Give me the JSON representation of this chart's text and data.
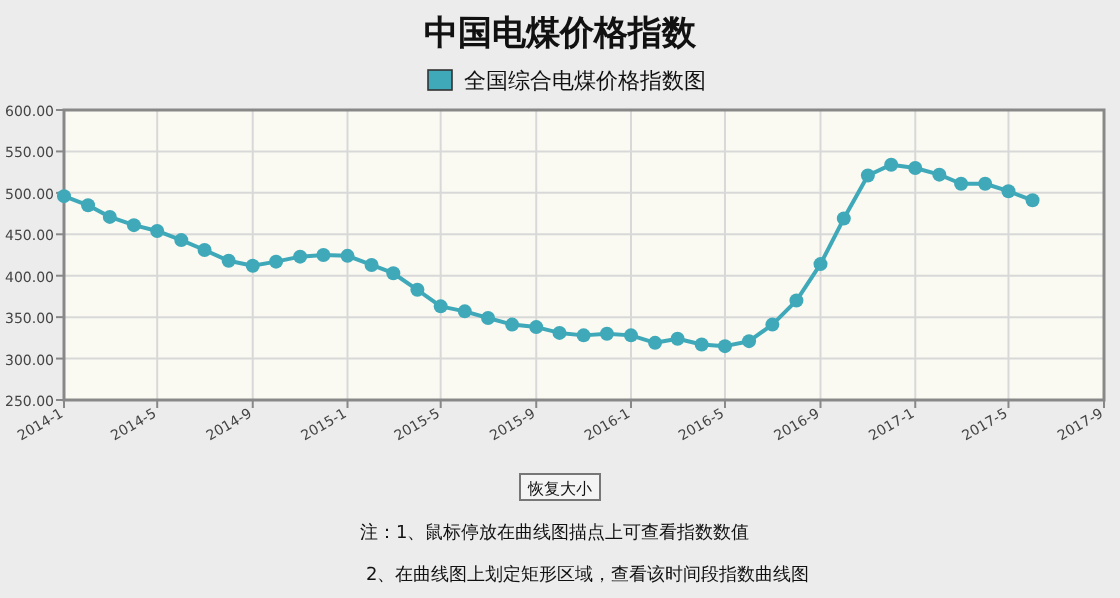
{
  "chart_data": {
    "type": "line",
    "title": "中国电煤价格指数",
    "x": [
      "2014-01",
      "2014-02",
      "2014-03",
      "2014-04",
      "2014-05",
      "2014-06",
      "2014-07",
      "2014-08",
      "2014-09",
      "2014-10",
      "2014-11",
      "2014-12",
      "2015-01",
      "2015-02",
      "2015-03",
      "2015-04",
      "2015-05",
      "2015-06",
      "2015-07",
      "2015-08",
      "2015-09",
      "2015-10",
      "2015-11",
      "2015-12",
      "2016-01",
      "2016-02",
      "2016-03",
      "2016-04",
      "2016-05",
      "2016-06",
      "2016-07",
      "2016-08",
      "2016-09",
      "2016-10",
      "2016-11",
      "2016-12",
      "2017-01",
      "2017-02",
      "2017-03",
      "2017-04",
      "2017-05",
      "2017-06"
    ],
    "series": [
      {
        "name": "全国综合电煤价格指数图",
        "color": "#3fa9b9",
        "values": [
          496,
          485,
          471,
          461,
          454,
          443,
          431,
          418,
          412,
          417,
          423,
          425,
          424,
          413,
          403,
          383,
          363,
          357,
          349,
          341,
          338,
          331,
          328,
          330,
          328,
          319,
          324,
          317,
          315,
          321,
          341,
          370,
          414,
          469,
          521,
          534,
          530,
          522,
          511,
          511,
          502,
          491
        ]
      }
    ],
    "xlim": [
      "2014-01",
      "2017-09"
    ],
    "xticks": [
      {
        "value": "2014-01",
        "label": "2014-1"
      },
      {
        "value": "2014-05",
        "label": "2014-5"
      },
      {
        "value": "2014-09",
        "label": "2014-9"
      },
      {
        "value": "2015-01",
        "label": "2015-1"
      },
      {
        "value": "2015-05",
        "label": "2015-5"
      },
      {
        "value": "2015-09",
        "label": "2015-9"
      },
      {
        "value": "2016-01",
        "label": "2016-1"
      },
      {
        "value": "2016-05",
        "label": "2016-5"
      },
      {
        "value": "2016-09",
        "label": "2016-9"
      },
      {
        "value": "2017-01",
        "label": "2017-1"
      },
      {
        "value": "2017-05",
        "label": "2017-5"
      },
      {
        "value": "2017-09",
        "label": "2017-9"
      }
    ],
    "ylim": [
      250,
      600
    ],
    "yticks": [
      {
        "value": 250,
        "label": "250.00"
      },
      {
        "value": 300,
        "label": "300.00"
      },
      {
        "value": 350,
        "label": "350.00"
      },
      {
        "value": 400,
        "label": "400.00"
      },
      {
        "value": 450,
        "label": "450.00"
      },
      {
        "value": 500,
        "label": "500.00"
      },
      {
        "value": 550,
        "label": "550.00"
      },
      {
        "value": 600,
        "label": "600.00"
      }
    ],
    "grid": true,
    "legend": "top",
    "marker": "circle",
    "line_style": "solid",
    "annotations": [
      "恢复大小",
      "注：1、鼠标停放在曲线图描点上可查看指数数值",
      "2、在曲线图上划定矩形区域，查看该时间段指数曲线图"
    ]
  }
}
